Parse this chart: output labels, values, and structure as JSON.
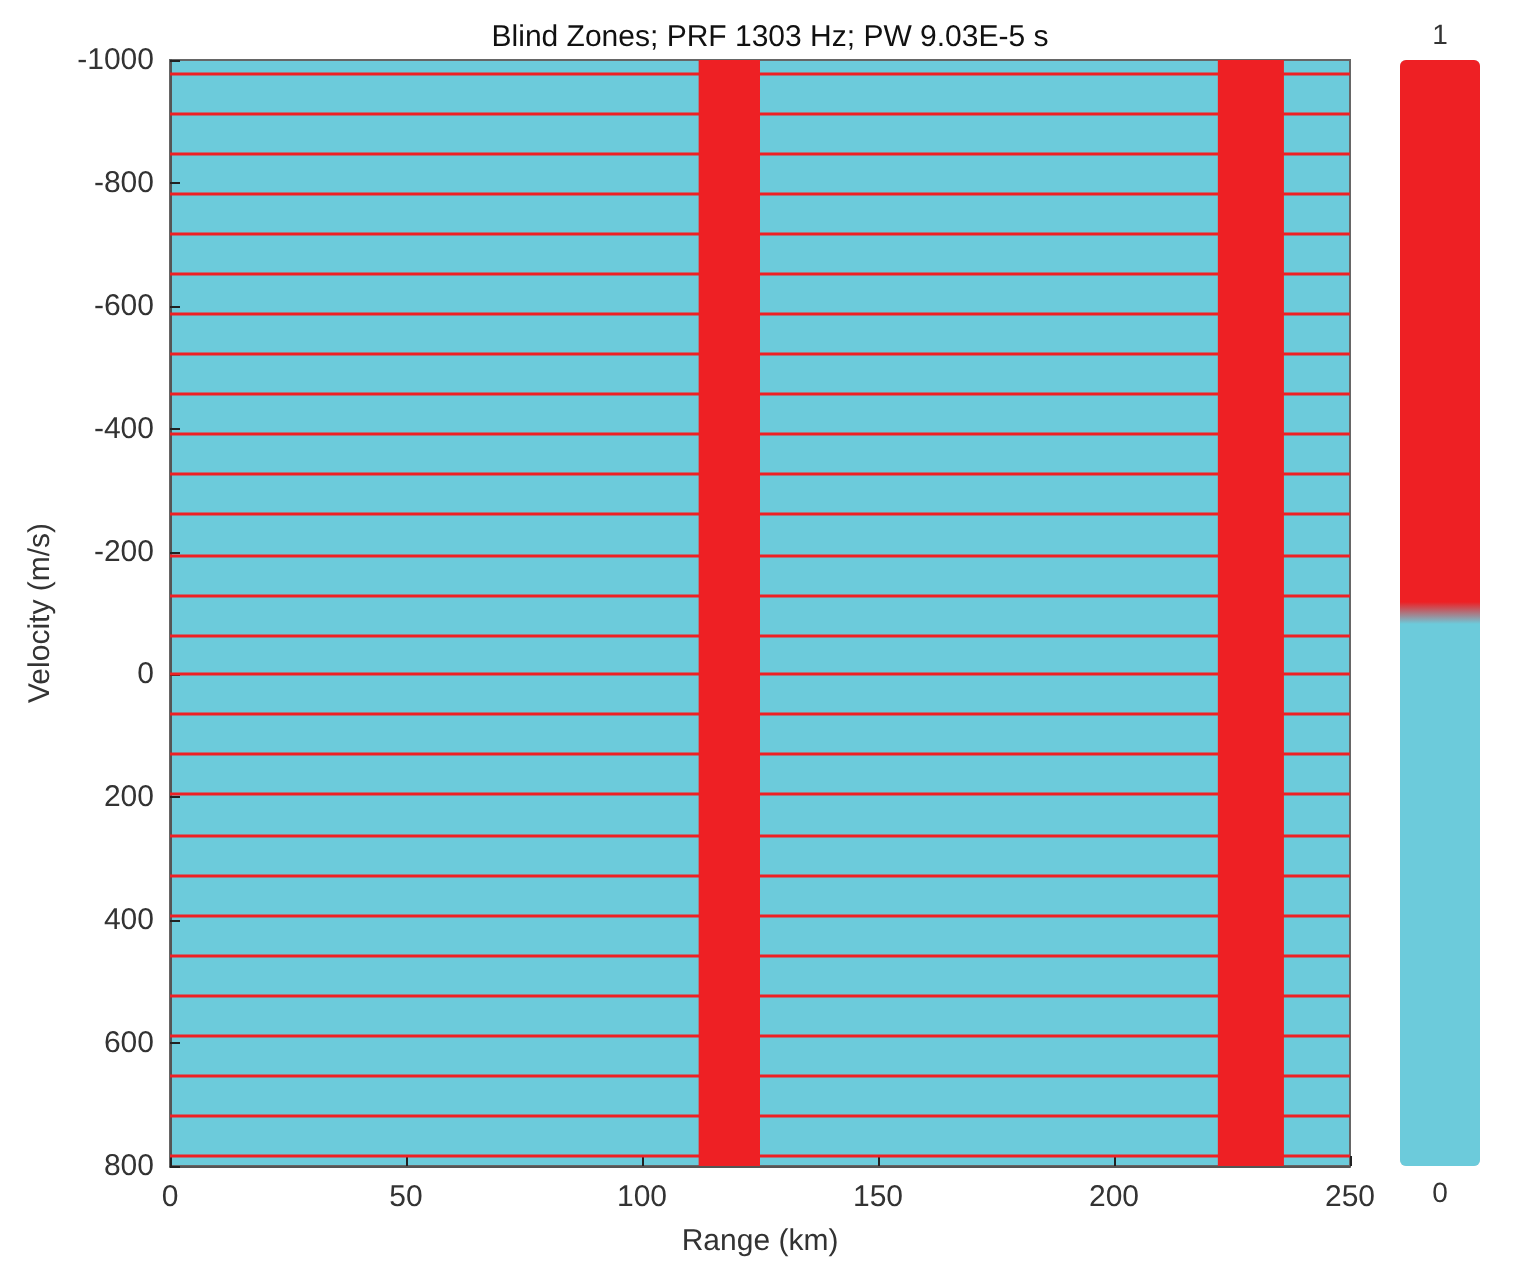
{
  "chart_data": {
    "type": "heatmap",
    "title": "Blind Zones; PRF 1303 Hz; PW 9.03E-5 s",
    "xlabel": "Range (km)",
    "ylabel": "Velocity (m/s)",
    "xlim": [
      0,
      250
    ],
    "xticks": [
      0,
      50,
      100,
      150,
      200,
      250
    ],
    "ylim": [
      800,
      -1000
    ],
    "yticks": [
      -1000,
      -800,
      -600,
      -400,
      -200,
      0,
      200,
      400,
      600,
      800
    ],
    "clim": [
      0,
      1
    ],
    "cticks": [
      0,
      1
    ],
    "colors": [
      "#6ccbdb",
      "#ee2024"
    ],
    "bands": [
      {
        "axis": "x",
        "from": 112,
        "to": 125,
        "color": "#ee2024"
      },
      {
        "axis": "x",
        "from": 222,
        "to": 236,
        "color": "#ee2024"
      }
    ],
    "ref_lines": [
      {
        "axis": "y",
        "value": -977,
        "color": "#ee2024"
      },
      {
        "axis": "y",
        "value": -912,
        "color": "#ee2024"
      },
      {
        "axis": "y",
        "value": -847,
        "color": "#ee2024"
      },
      {
        "axis": "y",
        "value": -782,
        "color": "#ee2024"
      },
      {
        "axis": "y",
        "value": -717,
        "color": "#ee2024"
      },
      {
        "axis": "y",
        "value": -652,
        "color": "#ee2024"
      },
      {
        "axis": "y",
        "value": -586,
        "color": "#ee2024"
      },
      {
        "axis": "y",
        "value": -521,
        "color": "#ee2024"
      },
      {
        "axis": "y",
        "value": -456,
        "color": "#ee2024"
      },
      {
        "axis": "y",
        "value": -391,
        "color": "#ee2024"
      },
      {
        "axis": "y",
        "value": -326,
        "color": "#ee2024"
      },
      {
        "axis": "y",
        "value": -261,
        "color": "#ee2024"
      },
      {
        "axis": "y",
        "value": -195,
        "color": "#ee2024"
      },
      {
        "axis": "y",
        "value": -130,
        "color": "#ee2024"
      },
      {
        "axis": "y",
        "value": -65,
        "color": "#ee2024"
      },
      {
        "axis": "y",
        "value": 0,
        "color": "#ee2024"
      },
      {
        "axis": "y",
        "value": 65,
        "color": "#ee2024"
      },
      {
        "axis": "y",
        "value": 130,
        "color": "#ee2024"
      },
      {
        "axis": "y",
        "value": 195,
        "color": "#ee2024"
      },
      {
        "axis": "y",
        "value": 261,
        "color": "#ee2024"
      },
      {
        "axis": "y",
        "value": 326,
        "color": "#ee2024"
      },
      {
        "axis": "y",
        "value": 391,
        "color": "#ee2024"
      },
      {
        "axis": "y",
        "value": 456,
        "color": "#ee2024"
      },
      {
        "axis": "y",
        "value": 521,
        "color": "#ee2024"
      },
      {
        "axis": "y",
        "value": 586,
        "color": "#ee2024"
      },
      {
        "axis": "y",
        "value": 652,
        "color": "#ee2024"
      },
      {
        "axis": "y",
        "value": 717,
        "color": "#ee2024"
      },
      {
        "axis": "y",
        "value": 782,
        "color": "#ee2024"
      }
    ]
  }
}
